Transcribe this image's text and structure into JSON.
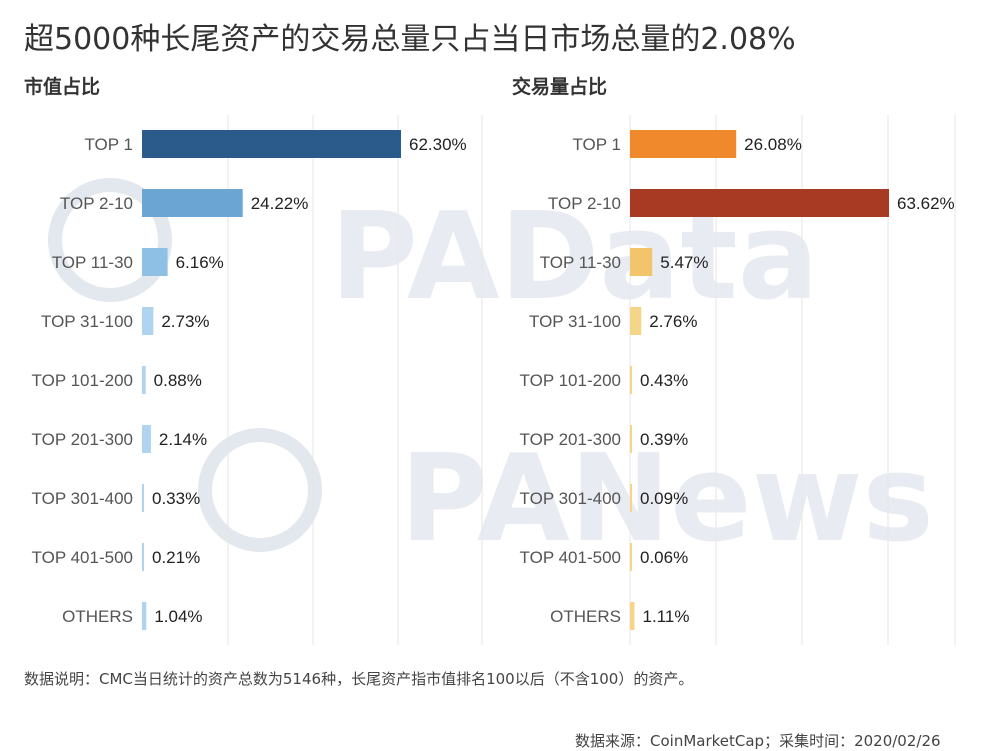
{
  "title": "超5000种长尾资产的交易总量只占当日市场总量的2.08%",
  "watermarks": [
    "PAData",
    "PANews"
  ],
  "footnote": "数据说明：CMC当日统计的资产总数为5146种，长尾资产指市值排名100以后（不含100）的资产。",
  "source": "数据来源：CoinMarketCap；采集时间：2020/02/26",
  "chart_data": [
    {
      "type": "bar",
      "orientation": "horizontal",
      "title": "市值占比",
      "categories": [
        "TOP 1",
        "TOP 2-10",
        "TOP 11-30",
        "TOP 31-100",
        "TOP 101-200",
        "TOP 201-300",
        "TOP 301-400",
        "TOP 401-500",
        "OTHERS"
      ],
      "values": [
        62.3,
        24.22,
        6.16,
        2.73,
        0.88,
        2.14,
        0.33,
        0.21,
        1.04
      ],
      "value_labels": [
        "62.30%",
        "24.22%",
        "6.16%",
        "2.73%",
        "0.88%",
        "2.14%",
        "0.33%",
        "0.21%",
        "1.04%"
      ],
      "colors": [
        "#2b5b8b",
        "#6aa5d4",
        "#8ec0e6",
        "#aed4f0",
        "#aed4f0",
        "#aed4f0",
        "#aed4f0",
        "#aed4f0",
        "#aed4f0"
      ],
      "xlim": [
        0,
        65
      ],
      "grid": true
    },
    {
      "type": "bar",
      "orientation": "horizontal",
      "title": "交易量占比",
      "categories": [
        "TOP 1",
        "TOP 2-10",
        "TOP 11-30",
        "TOP 31-100",
        "TOP 101-200",
        "TOP 201-300",
        "TOP 301-400",
        "TOP 401-500",
        "OTHERS"
      ],
      "values": [
        26.08,
        63.62,
        5.47,
        2.76,
        0.43,
        0.39,
        0.09,
        0.06,
        1.11
      ],
      "value_labels": [
        "26.08%",
        "63.62%",
        "5.47%",
        "2.76%",
        "0.43%",
        "0.39%",
        "0.09%",
        "0.06%",
        "1.11%"
      ],
      "colors": [
        "#f0892b",
        "#a83a24",
        "#f2c46b",
        "#f5d588",
        "#f5d588",
        "#f5d588",
        "#f5d588",
        "#f5d588",
        "#f5d588"
      ],
      "xlim": [
        0,
        65
      ],
      "grid": true
    }
  ]
}
